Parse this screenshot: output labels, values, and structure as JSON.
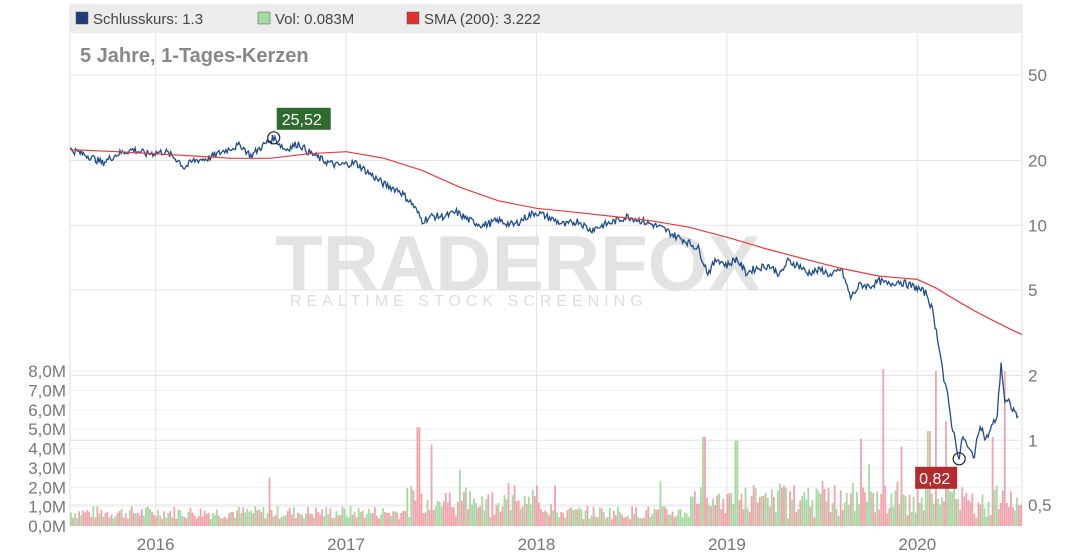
{
  "legend": [
    {
      "label": "Schlusskurs: 1.3",
      "color": "#1f3c78"
    },
    {
      "label": "Vol: 0.083M",
      "color": "#a6dba0"
    },
    {
      "label": "SMA (200): 3.222",
      "color": "#e03030"
    }
  ],
  "title": "5 Jahre, 1-Tages-Kerzen",
  "watermark": {
    "main": "TRADERFOX",
    "sub": "REALTIME STOCK SCREENING"
  },
  "colors": {
    "price": "#1f4e8c",
    "sma": "#ee3b3b",
    "vol_up": "#9ed49a",
    "vol_down": "#ef9aa3",
    "high_callout": "#2e6b2e",
    "low_callout": "#b52b2b",
    "grid": "#e3e3e3"
  },
  "chart_data": {
    "type": "line",
    "title": "5 Jahre, 1-Tages-Kerzen",
    "x_ticks": [
      {
        "label": "2016",
        "t": 2016.0
      },
      {
        "label": "2017",
        "t": 2017.0
      },
      {
        "label": "2018",
        "t": 2018.0
      },
      {
        "label": "2019",
        "t": 2019.0
      },
      {
        "label": "2020",
        "t": 2020.0
      }
    ],
    "x_range": [
      2015.55,
      2020.55
    ],
    "price_axis": {
      "scale": "log",
      "ticks": [
        {
          "label": "50",
          "v": 50
        },
        {
          "label": "20",
          "v": 20
        },
        {
          "label": "10",
          "v": 10
        },
        {
          "label": "5",
          "v": 5
        },
        {
          "label": "2",
          "v": 2
        },
        {
          "label": "1",
          "v": 1
        },
        {
          "label": "0,5",
          "v": 0.5
        }
      ]
    },
    "volume_axis": {
      "ticks": [
        {
          "label": "8,0M",
          "v": 8
        },
        {
          "label": "7,0M",
          "v": 7
        },
        {
          "label": "6,0M",
          "v": 6
        },
        {
          "label": "5,0M",
          "v": 5
        },
        {
          "label": "4,0M",
          "v": 4
        },
        {
          "label": "3,0M",
          "v": 3
        },
        {
          "label": "2,0M",
          "v": 2
        },
        {
          "label": "1,0M",
          "v": 1
        },
        {
          "label": "0,0M",
          "v": 0
        }
      ],
      "unit": "M"
    },
    "high": {
      "label": "25,52",
      "t": 2016.62,
      "v": 25.52
    },
    "low": {
      "label": "0,82",
      "t": 2020.22,
      "v": 0.82
    },
    "series": [
      {
        "name": "Schlusskurs",
        "points": [
          [
            2015.55,
            22.5
          ],
          [
            2015.65,
            21
          ],
          [
            2015.72,
            19.5
          ],
          [
            2015.8,
            21.5
          ],
          [
            2015.88,
            22.5
          ],
          [
            2015.95,
            21.5
          ],
          [
            2016.05,
            22
          ],
          [
            2016.12,
            20
          ],
          [
            2016.15,
            18.5
          ],
          [
            2016.2,
            20
          ],
          [
            2016.28,
            20.5
          ],
          [
            2016.35,
            22
          ],
          [
            2016.4,
            23
          ],
          [
            2016.45,
            23.5
          ],
          [
            2016.5,
            21
          ],
          [
            2016.55,
            23
          ],
          [
            2016.62,
            25.52
          ],
          [
            2016.68,
            22.5
          ],
          [
            2016.75,
            24
          ],
          [
            2016.8,
            22
          ],
          [
            2016.88,
            20
          ],
          [
            2016.95,
            19
          ],
          [
            2017.05,
            19.5
          ],
          [
            2017.12,
            17.5
          ],
          [
            2017.2,
            15.5
          ],
          [
            2017.28,
            14.5
          ],
          [
            2017.35,
            12.5
          ],
          [
            2017.4,
            10.5
          ],
          [
            2017.45,
            11
          ],
          [
            2017.52,
            11
          ],
          [
            2017.58,
            11.5
          ],
          [
            2017.65,
            10.5
          ],
          [
            2017.72,
            10
          ],
          [
            2017.8,
            10.5
          ],
          [
            2017.88,
            10
          ],
          [
            2017.95,
            11
          ],
          [
            2018.0,
            11.5
          ],
          [
            2018.05,
            11
          ],
          [
            2018.1,
            10.5
          ],
          [
            2018.15,
            10
          ],
          [
            2018.22,
            10.5
          ],
          [
            2018.28,
            9.5
          ],
          [
            2018.35,
            10
          ],
          [
            2018.42,
            10.5
          ],
          [
            2018.48,
            11
          ],
          [
            2018.55,
            10.5
          ],
          [
            2018.62,
            10
          ],
          [
            2018.68,
            9.5
          ],
          [
            2018.72,
            9
          ],
          [
            2018.78,
            8.5
          ],
          [
            2018.85,
            7.8
          ],
          [
            2018.9,
            6
          ],
          [
            2018.95,
            7
          ],
          [
            2019.0,
            6.5
          ],
          [
            2019.05,
            7
          ],
          [
            2019.1,
            6
          ],
          [
            2019.15,
            6.3
          ],
          [
            2019.22,
            6.5
          ],
          [
            2019.28,
            5.9
          ],
          [
            2019.32,
            6.8
          ],
          [
            2019.38,
            6.5
          ],
          [
            2019.42,
            6
          ],
          [
            2019.5,
            6.2
          ],
          [
            2019.55,
            5.8
          ],
          [
            2019.6,
            6.3
          ],
          [
            2019.65,
            4.6
          ],
          [
            2019.7,
            5.3
          ],
          [
            2019.75,
            5.2
          ],
          [
            2019.8,
            5.5
          ],
          [
            2019.85,
            5.3
          ],
          [
            2019.9,
            5.5
          ],
          [
            2019.95,
            5.3
          ],
          [
            2020.0,
            5.1
          ],
          [
            2020.05,
            4.8
          ],
          [
            2020.08,
            4
          ],
          [
            2020.1,
            3.2
          ],
          [
            2020.12,
            2.6
          ],
          [
            2020.14,
            1.9
          ],
          [
            2020.16,
            1.6
          ],
          [
            2020.18,
            1.2
          ],
          [
            2020.2,
            1
          ],
          [
            2020.22,
            0.82
          ],
          [
            2020.24,
            1.05
          ],
          [
            2020.27,
            0.9
          ],
          [
            2020.3,
            0.85
          ],
          [
            2020.33,
            1.2
          ],
          [
            2020.36,
            1
          ],
          [
            2020.39,
            1.15
          ],
          [
            2020.42,
            1.3
          ],
          [
            2020.44,
            2.3
          ],
          [
            2020.46,
            1.5
          ],
          [
            2020.48,
            1.5
          ],
          [
            2020.5,
            1.4
          ],
          [
            2020.53,
            1.3
          ]
        ]
      },
      {
        "name": "SMA (200)",
        "points": [
          [
            2015.55,
            22.5
          ],
          [
            2015.8,
            22
          ],
          [
            2016.0,
            21.5
          ],
          [
            2016.2,
            21
          ],
          [
            2016.4,
            20.5
          ],
          [
            2016.6,
            20.5
          ],
          [
            2016.8,
            21.5
          ],
          [
            2017.0,
            22
          ],
          [
            2017.2,
            20.5
          ],
          [
            2017.4,
            18
          ],
          [
            2017.6,
            15
          ],
          [
            2017.8,
            13
          ],
          [
            2018.0,
            12
          ],
          [
            2018.2,
            11.5
          ],
          [
            2018.4,
            11
          ],
          [
            2018.6,
            10.5
          ],
          [
            2018.8,
            9.8
          ],
          [
            2019.0,
            8.8
          ],
          [
            2019.2,
            7.8
          ],
          [
            2019.4,
            7
          ],
          [
            2019.6,
            6.3
          ],
          [
            2019.8,
            5.8
          ],
          [
            2020.0,
            5.6
          ],
          [
            2020.1,
            5.1
          ],
          [
            2020.2,
            4.5
          ],
          [
            2020.3,
            4
          ],
          [
            2020.4,
            3.6
          ],
          [
            2020.5,
            3.25
          ],
          [
            2020.55,
            3.1
          ]
        ]
      }
    ],
    "volume_peaks": [
      {
        "t": 2017.38,
        "v": 5.1
      },
      {
        "t": 2017.45,
        "v": 4.2
      },
      {
        "t": 2017.6,
        "v": 2.9
      },
      {
        "t": 2017.85,
        "v": 2.2
      },
      {
        "t": 2018.65,
        "v": 2.3
      },
      {
        "t": 2018.88,
        "v": 4.6
      },
      {
        "t": 2019.05,
        "v": 4.4
      },
      {
        "t": 2019.35,
        "v": 2.1
      },
      {
        "t": 2019.7,
        "v": 4.5
      },
      {
        "t": 2019.75,
        "v": 3.2
      },
      {
        "t": 2019.82,
        "v": 8.1
      },
      {
        "t": 2019.92,
        "v": 4.1
      },
      {
        "t": 2020.06,
        "v": 4.9
      },
      {
        "t": 2020.1,
        "v": 8.0
      },
      {
        "t": 2020.15,
        "v": 5.4
      },
      {
        "t": 2020.4,
        "v": 4.6
      },
      {
        "t": 2020.46,
        "v": 8.0
      },
      {
        "t": 2016.6,
        "v": 2.5
      }
    ]
  }
}
